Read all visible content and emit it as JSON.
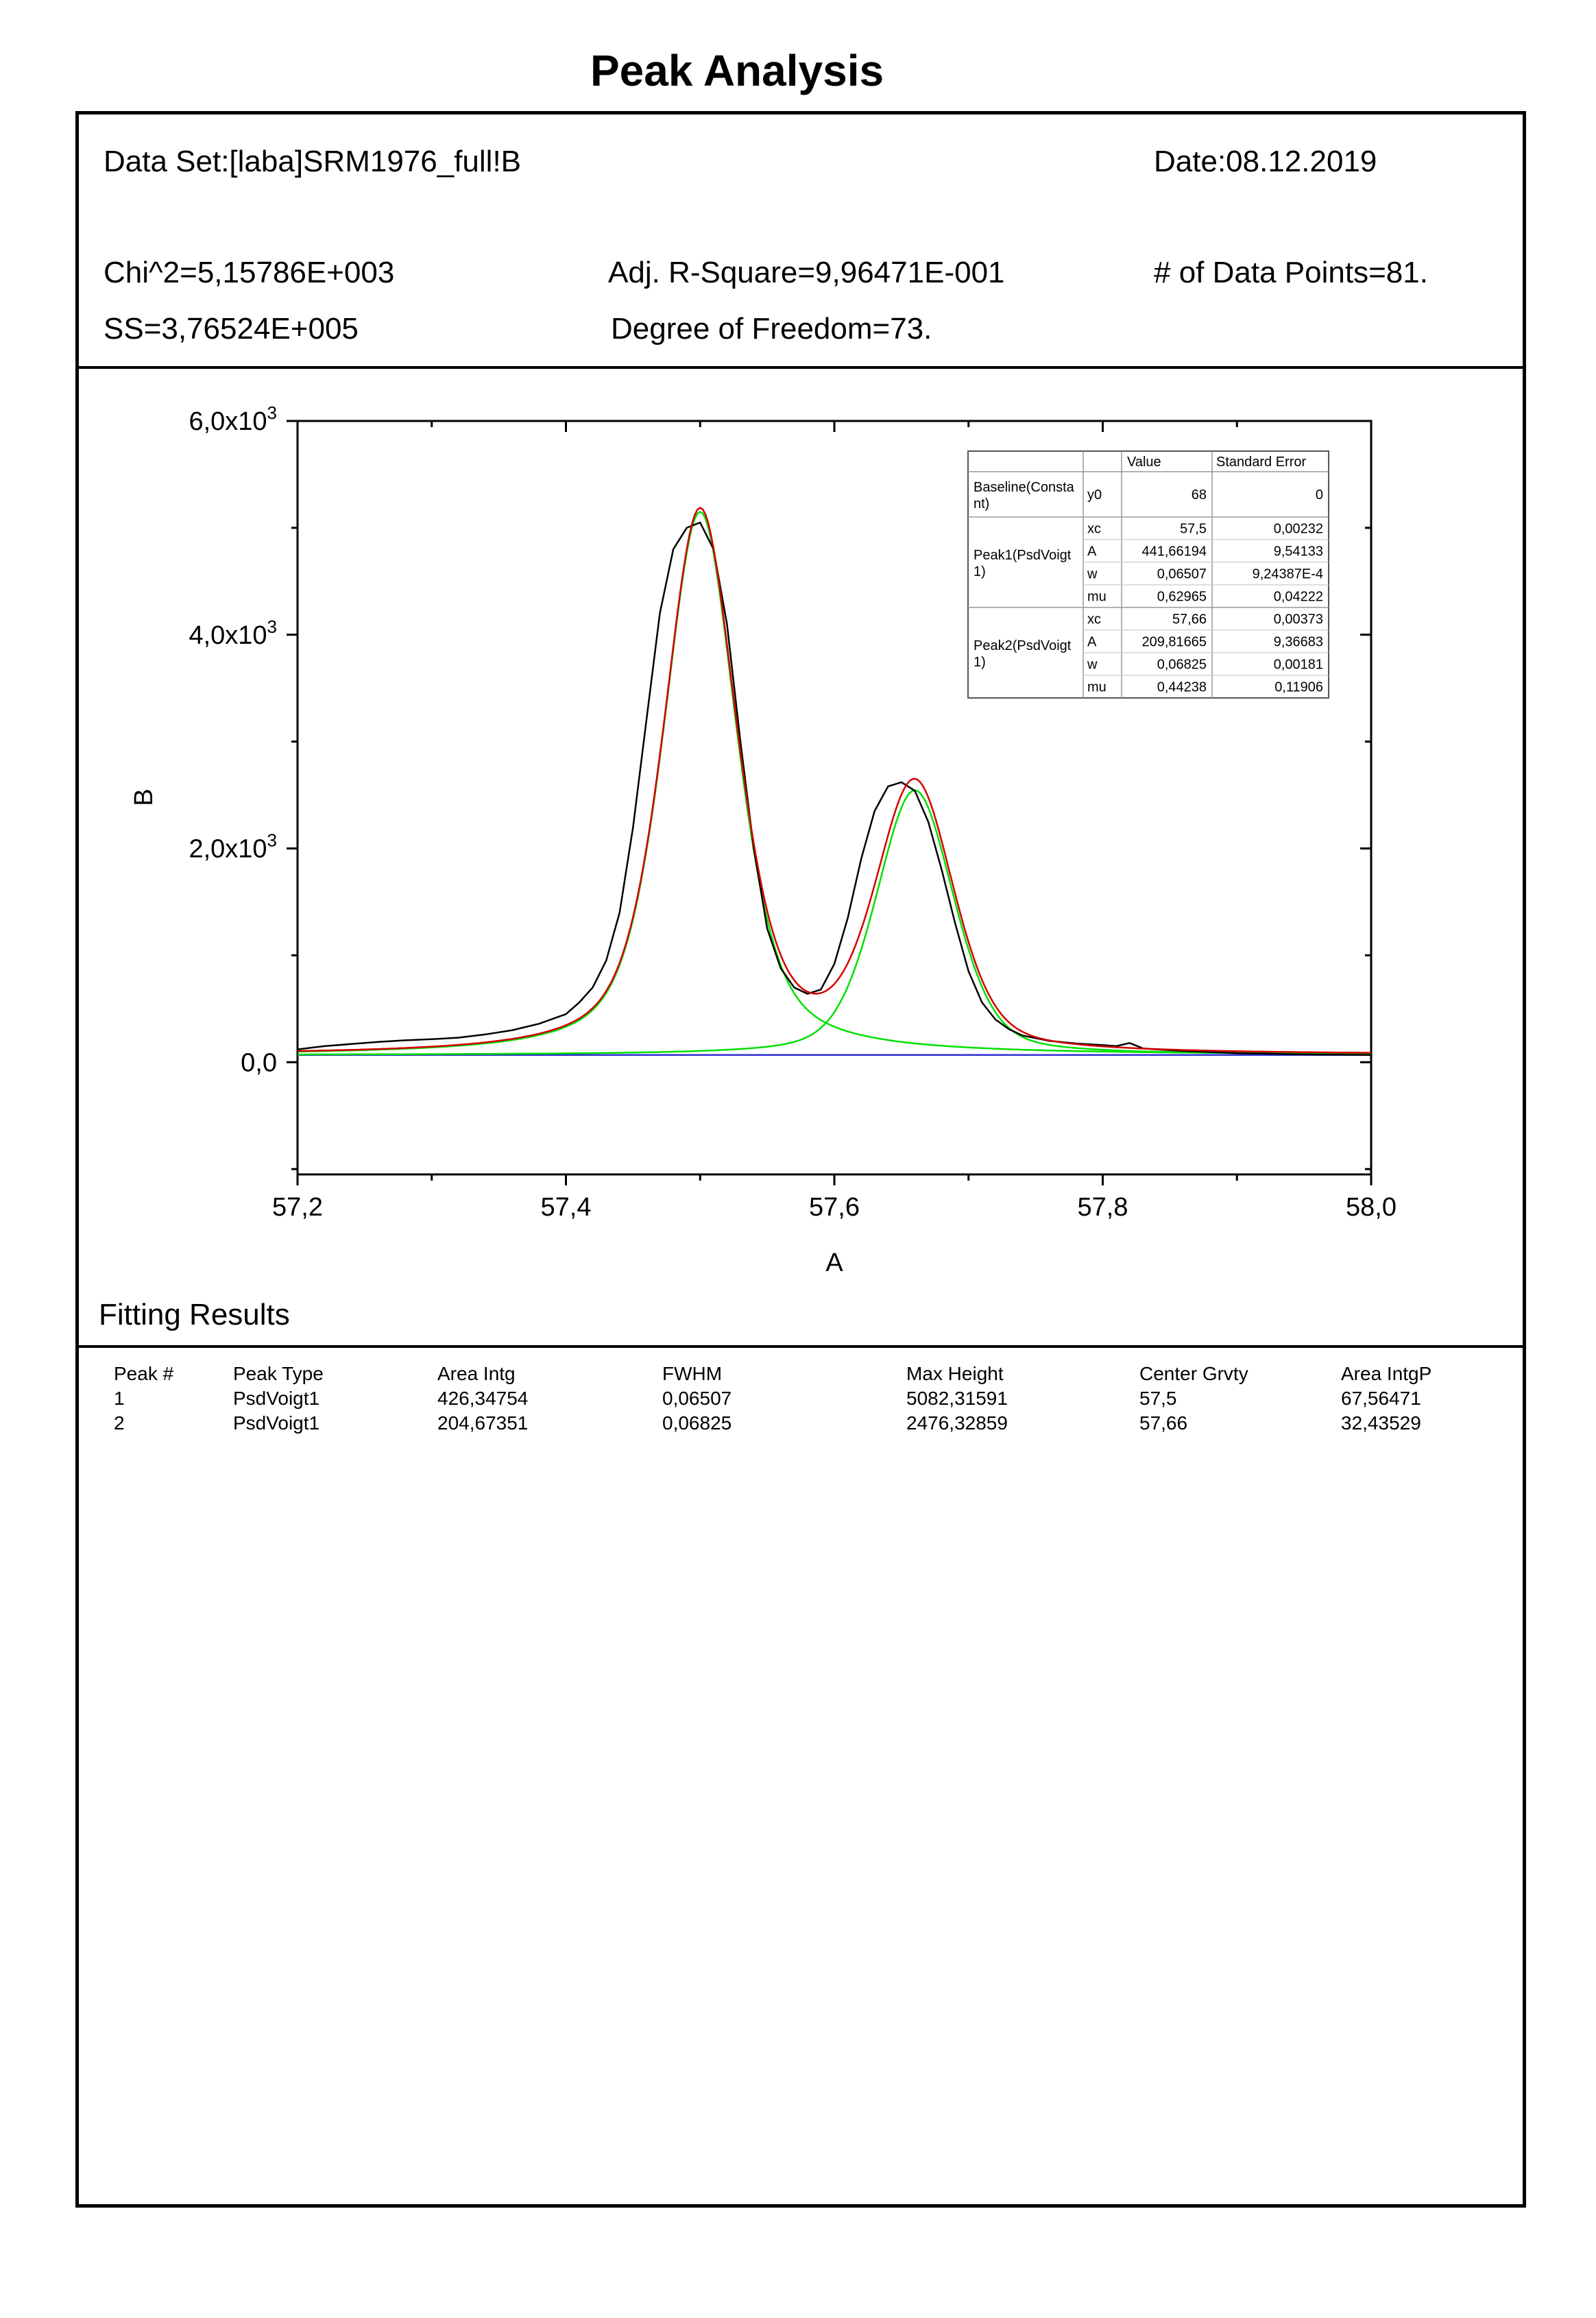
{
  "page_title": "Peak Analysis",
  "header": {
    "data_set": "Data Set:[laba]SRM1976_full!B",
    "date": "Date:08.12.2019",
    "chi2": "Chi^2=5,15786E+003",
    "adj_r2": "Adj. R-Square=9,96471E-001",
    "n_points": "# of Data Points=81.",
    "ss": "SS=3,76524E+005",
    "dof": "Degree of Freedom=73."
  },
  "colors": {
    "data": "#000000",
    "cumulative_fit": "#d40000",
    "peak_fit": "#00e000",
    "baseline": "#3030d0"
  },
  "chart_data": {
    "type": "line",
    "title": "",
    "xlabel": "A",
    "ylabel": "B",
    "xlim": [
      57.2,
      58.0
    ],
    "ylim": [
      -1050,
      6000
    ],
    "x_ticks": [
      {
        "value": 57.2,
        "label": "57,2"
      },
      {
        "value": 57.4,
        "label": "57,4"
      },
      {
        "value": 57.6,
        "label": "57,6"
      },
      {
        "value": 57.8,
        "label": "57,8"
      },
      {
        "value": 58.0,
        "label": "58,0"
      }
    ],
    "y_ticks": [
      {
        "value": 0,
        "label": "0,0",
        "exp": ""
      },
      {
        "value": 2000,
        "label": "2,0x10",
        "exp": "3"
      },
      {
        "value": 4000,
        "label": "4,0x10",
        "exp": "3"
      },
      {
        "value": 6000,
        "label": "6,0x10",
        "exp": "3"
      }
    ],
    "baseline_y0": 68,
    "peaks": [
      {
        "xc": 57.5,
        "A": 441.66194,
        "w": 0.06507,
        "mu": 0.62965
      },
      {
        "xc": 57.66,
        "A": 209.81665,
        "w": 0.06825,
        "mu": 0.44238
      }
    ],
    "series": [
      {
        "key": "data",
        "x": [
          57.2,
          57.22,
          57.24,
          57.26,
          57.28,
          57.3,
          57.32,
          57.34,
          57.36,
          57.38,
          57.4,
          57.41,
          57.42,
          57.43,
          57.44,
          57.45,
          57.46,
          57.47,
          57.48,
          57.49,
          57.5,
          57.51,
          57.52,
          57.53,
          57.54,
          57.55,
          57.56,
          57.57,
          57.58,
          57.59,
          57.6,
          57.61,
          57.62,
          57.63,
          57.64,
          57.65,
          57.66,
          57.67,
          57.68,
          57.69,
          57.7,
          57.71,
          57.72,
          57.73,
          57.74,
          57.76,
          57.78,
          57.8,
          57.81,
          57.82,
          57.83,
          57.84,
          57.86,
          57.88,
          57.9,
          57.92,
          57.94,
          57.96,
          57.98,
          58.0
        ],
        "values": [
          120,
          150,
          170,
          190,
          205,
          215,
          230,
          260,
          300,
          360,
          450,
          560,
          700,
          950,
          1400,
          2200,
          3200,
          4200,
          4800,
          5000,
          5050,
          4800,
          4100,
          3000,
          2000,
          1250,
          880,
          700,
          640,
          680,
          920,
          1350,
          1900,
          2350,
          2580,
          2620,
          2540,
          2250,
          1800,
          1300,
          850,
          560,
          400,
          310,
          250,
          200,
          175,
          160,
          150,
          180,
          130,
          120,
          105,
          95,
          85,
          80,
          75,
          72,
          70,
          68
        ]
      },
      {
        "key": "cumulative_fit",
        "x": [],
        "values": []
      },
      {
        "key": "peak1_fit",
        "x": [],
        "values": []
      },
      {
        "key": "peak2_fit",
        "x": [],
        "values": []
      }
    ]
  },
  "param_table": {
    "headers": [
      "",
      "",
      "Value",
      "Standard Error"
    ],
    "groups": [
      {
        "name_lines": [
          "Baseline(Consta",
          "nt)"
        ],
        "rows": [
          [
            "y0",
            "68",
            "0"
          ]
        ]
      },
      {
        "name_lines": [
          "Peak1(PsdVoigt",
          "1)"
        ],
        "rows": [
          [
            "xc",
            "57,5",
            "0,00232"
          ],
          [
            "A",
            "441,66194",
            "9,54133"
          ],
          [
            "w",
            "0,06507",
            "9,24387E-4"
          ],
          [
            "mu",
            "0,62965",
            "0,04222"
          ]
        ]
      },
      {
        "name_lines": [
          "Peak2(PsdVoigt",
          "1)"
        ],
        "rows": [
          [
            "xc",
            "57,66",
            "0,00373"
          ],
          [
            "A",
            "209,81665",
            "9,36683"
          ],
          [
            "w",
            "0,06825",
            "0,00181"
          ],
          [
            "mu",
            "0,44238",
            "0,11906"
          ]
        ]
      }
    ]
  },
  "results": {
    "heading": "Fitting Results",
    "columns": [
      "Peak #",
      "Peak Type",
      "Area Intg",
      "FWHM",
      "Max Height",
      "Center Grvty",
      "Area IntgP"
    ],
    "rows": [
      [
        "1",
        "PsdVoigt1",
        "426,34754",
        "0,06507",
        "5082,31591",
        "57,5",
        "67,56471"
      ],
      [
        "2",
        "PsdVoigt1",
        "204,67351",
        "0,06825",
        "2476,32859",
        "57,66",
        "32,43529"
      ]
    ]
  }
}
